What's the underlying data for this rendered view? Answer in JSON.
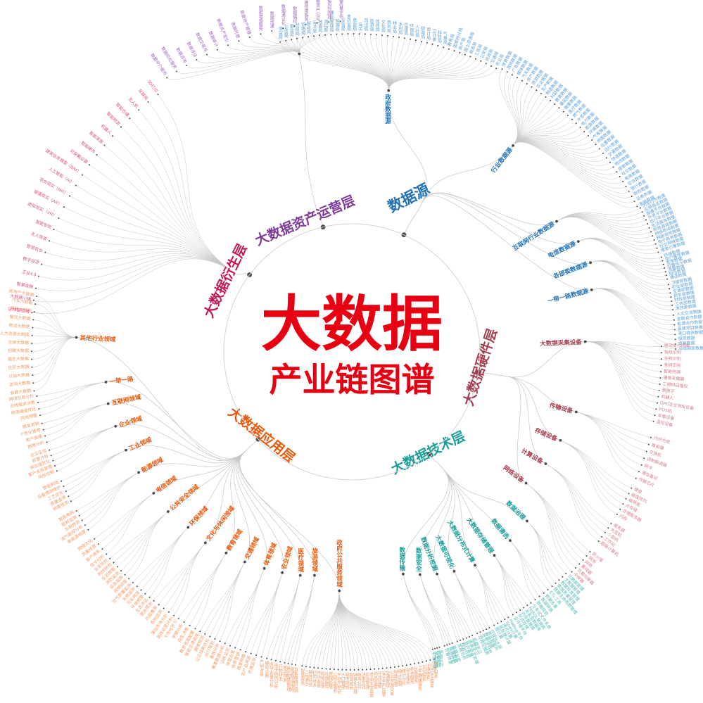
{
  "center": {
    "title": "大数据",
    "subtitle": "产业链图谱",
    "color": "#e60012"
  },
  "link_color": "#c6c6c6",
  "branches": [
    {
      "name": "数据源",
      "color": "#2473b5",
      "leaf_color": "#5c9fd6",
      "children": [
        {
          "name": "政府数据源",
          "leaves": [
            "农业局",
            "交通局",
            "民政局",
            "公安局",
            "工商局",
            "税务局",
            "国土资源局",
            "房产局",
            "国家统计局",
            "教育局",
            "气象局",
            "科技局",
            "卫计委",
            "审计局",
            "财政局",
            "人社局",
            "环保局",
            "住建局",
            "水利局",
            "林业局",
            "商务局",
            "文化局",
            "体育局",
            "旅游局",
            "司法局",
            "海关",
            "质监局",
            "食药监局",
            "安监局",
            "能源局",
            "通信管理局",
            "测绘局",
            "地震局",
            "海洋局",
            "邮政局",
            "铁路局",
            "民航局",
            "银监局",
            "证监局",
            "保监局"
          ]
        },
        {
          "name": "行业数据源",
          "leaves": [
            "金融数据",
            "证券数据",
            "保险数据",
            "银行数据",
            "征信数据",
            "电商数据",
            "社交数据",
            "搜索数据",
            "物流数据",
            "快递数据",
            "交通数据",
            "出行数据",
            "位置数据",
            "地图数据",
            "气象数据",
            "环境数据",
            "能源数据",
            "电力数据",
            "水务数据",
            "燃气数据",
            "医疗数据",
            "健康数据",
            "基因数据",
            "教育数据",
            "科研数据",
            "制造数据",
            "生产数据",
            "农业数据",
            "旅游数据",
            "房产数据",
            "汽车数据",
            "媒体数据",
            "广告数据",
            "游戏数据",
            "体育数据"
          ]
        },
        {
          "name": "互联网行业数据源",
          "leaves": [
            "搜索引擎数据",
            "社交网络数据",
            "电子商务数据",
            "网络视频数据",
            "网络新闻数据",
            "网络游戏数据",
            "生活服务数据",
            "出行平台数据",
            "外卖平台数据",
            "直播平台数据",
            "应用商店数据",
            "浏览行为数据"
          ]
        },
        {
          "name": "电信数据源",
          "leaves": [
            "通话数据",
            "短信数据",
            "流量数据",
            "位置信令数据",
            "宽带数据",
            "用户属性数据",
            "终端数据"
          ]
        },
        {
          "name": "各部委数据源",
          "leaves": [
            "发改委数据",
            "工信部数据",
            "财政部数据",
            "商务部数据",
            "交通部数据",
            "农业部数据",
            "卫健委数据"
          ]
        },
        {
          "name": "一带一路数据源",
          "leaves": [
            "沿线国家数据",
            "贸易数据",
            "投资数据",
            "港口物流数据",
            "基建项目数据",
            "能源合作数据",
            "金融合作数据",
            "人文交流数据"
          ]
        }
      ]
    },
    {
      "name": "大数据硬件层",
      "color": "#a63d4f",
      "leaf_color": "#d2808d",
      "children": [
        {
          "name": "大数据采集设备",
          "leaves": [
            "移动支付终端",
            "指纹识别",
            "生物识别",
            "条码识别",
            "智能终端",
            "摄像采集器",
            "二维码扫描仪",
            "黑匣子",
            "机器人",
            "GPS定位测绘设备",
            "POS机",
            "车载设备",
            "监控设备"
          ]
        },
        {
          "name": "传输设备",
          "leaves": [
            "光纤光缆",
            "路由器",
            "交换机",
            "调制解调器",
            "网卡",
            "通信基站",
            "传输芯片"
          ]
        },
        {
          "name": "存储设备",
          "leaves": [
            "硬盘",
            "磁盘阵列",
            "磁带库",
            "光存储",
            "存储服务器",
            "闪存"
          ]
        },
        {
          "name": "计算设备",
          "leaves": [
            "服务器",
            "大型机",
            "小型机",
            "工作站",
            "超级计算机"
          ]
        },
        {
          "name": "网络设备",
          "leaves": [
            "防火墙",
            "网关",
            "网桥",
            "集线器",
            "负载均衡器",
            "中继器"
          ]
        }
      ]
    },
    {
      "name": "大数据技术层",
      "color": "#1b9e9a",
      "leaf_color": "#55bab5",
      "children": [
        {
          "name": "数据治理",
          "leaves": [
            "元数据管理",
            "主数据管理",
            "数据标准管理",
            "数据质量管理",
            "数据生命周期管理"
          ]
        },
        {
          "name": "数据清洗",
          "leaves": [
            "ETL工具",
            "数据去重",
            "数据转换",
            "数据校验"
          ]
        },
        {
          "name": "大数据存储管理",
          "leaves": [
            "分布式文件系统",
            "NoSQL数据库",
            "关系型数据库",
            "内存数据库",
            "列式存储",
            "云存储平台"
          ]
        },
        {
          "name": "大数据分布式计算",
          "leaves": [
            "Hadoop平台",
            "Spark计算",
            "流式计算",
            "批处理计算",
            "图计算"
          ]
        },
        {
          "name": "大数据可视化",
          "leaves": [
            "可视化大屏",
            "商业智能BI",
            "数据地图",
            "交互式分析",
            "可视化报表"
          ]
        },
        {
          "name": "数据分析挖掘",
          "leaves": [
            "机器学习",
            "深度学习",
            "自然语言处理",
            "用户画像",
            "预测分析",
            "关联分析"
          ]
        },
        {
          "name": "数据安全",
          "leaves": [
            "数据加密",
            "数据脱敏",
            "访问控制",
            "灾备恢复"
          ]
        },
        {
          "name": "数据传输",
          "leaves": [
            "消息队列",
            "数据总线",
            "实时同步",
            "专线传输"
          ]
        }
      ]
    },
    {
      "name": "大数据应用层",
      "color": "#e8590c",
      "leaf_color": "#f09a66",
      "children": [
        {
          "name": "其他行业领域",
          "leaves": [
            "房地产大数据",
            "汽车大数据",
            "零售大数据",
            "餐饮大数据",
            "物流大数据",
            "人力资源大数据",
            "法律大数据",
            "招聘大数据",
            "婚恋大数据",
            "社区大数据",
            "公益大数据",
            "咨询大数据",
            "会展大数据"
          ]
        },
        {
          "name": "一带一路",
          "leaves": [
            "跨境贸易分析",
            "沿线投资决策",
            "物流通道优化",
            "风险预警"
          ]
        },
        {
          "name": "互联网领域",
          "leaves": [
            "精准营销",
            "个性化推荐",
            "用户画像",
            "舆情分析"
          ]
        },
        {
          "name": "企业领域",
          "leaves": [
            "企业征信",
            "经营分析",
            "供应链优化",
            "客户关系管理",
            "风险控制"
          ]
        },
        {
          "name": "工业领域",
          "leaves": [
            "智能制造",
            "设备预测维护",
            "工艺优化",
            "质量追溯",
            "供需预测"
          ]
        },
        {
          "name": "能源领域",
          "leaves": [
            "智能电网",
            "能耗监测",
            "负荷预测",
            "油气勘探分析",
            "新能源调度"
          ]
        },
        {
          "name": "电信领域",
          "leaves": [
            "网络优化",
            "流量经营",
            "客户维系",
            "信令分析"
          ]
        },
        {
          "name": "公共安全领域",
          "leaves": [
            "治安防控",
            "刑侦研判",
            "反恐预警",
            "消防监测",
            "应急指挥",
            "视频侦查"
          ]
        },
        {
          "name": "环保领域",
          "leaves": [
            "空气质量监测",
            "水质监测",
            "污染溯源",
            "环境预警",
            "生态评估"
          ]
        },
        {
          "name": "文化与休闲领域",
          "leaves": [
            "票房预测",
            "内容推荐",
            "版权监测",
            "演出市场分析",
            "游戏运营分析"
          ]
        },
        {
          "name": "教育领域",
          "leaves": [
            "个性化学习",
            "学情分析",
            "招生决策",
            "教育资源配置"
          ]
        },
        {
          "name": "交通领域",
          "leaves": [
            "智能交通调度",
            "拥堵预测",
            "公交线路优化",
            "出行规划",
            "事故分析"
          ]
        },
        {
          "name": "体育领域",
          "leaves": [
            "赛事数据分析",
            "训练监测",
            "场馆运营",
            "体育营销"
          ]
        },
        {
          "name": "农业领域",
          "leaves": [
            "精准种植",
            "农产品溯源",
            "农情监测",
            "产销对接"
          ]
        },
        {
          "name": "医疗领域",
          "leaves": [
            "辅助诊断",
            "医学影像分析",
            "电子病历分析",
            "药物研发"
          ]
        },
        {
          "name": "旅游领域",
          "leaves": [
            "客流预测",
            "景区智慧管理",
            "旅游精准推荐",
            "游客舆情监测"
          ]
        },
        {
          "name": "政府公共服务领域",
          "leaves": [
            "智慧政务",
            "一网通办",
            "精准扶贫",
            "信用体系",
            "市场监管",
            "税收征管",
            "社保服务",
            "医保监管",
            "公积金服务",
            "不动产登记",
            "人口管理",
            "城市规划",
            "智慧城管",
            "网格化治理",
            "政务公开",
            "决策支持",
            "应急管理",
            "食品安全监管",
            "药品监管",
            "环境监管",
            "安全生产监管",
            "交通管理",
            "公共资源交易",
            "财政监督",
            "审计监督",
            "统计分析",
            "就业服务",
            "养老服务",
            "民政服务",
            "卫生健康服务",
            "文化服务",
            "法律服务",
            "公共安全服务",
            "便民服务"
          ]
        }
      ]
    },
    {
      "name": "大数据衍生层",
      "color": "#c2185b",
      "leaf_color": "#d45586",
      "children": [
        {
          "name": "",
          "leaves": [
            "3D打印",
            "车联网",
            "无人机",
            "智能仓储",
            "智能物流",
            "机器人",
            "智能家居",
            "智能硬件",
            "可穿戴设备",
            "建筑信息模型（BIM）",
            "人工智能（AI）",
            "混合现实（MR）",
            "增强现实（AR）",
            "虚拟现实（VR）",
            "智能安防",
            "无人驾驶",
            "智慧农业",
            "数字经济",
            "工业4.0",
            "智慧金融",
            "大数据小镇",
            "区块链应用"
          ]
        }
      ]
    },
    {
      "name": "大数据资产运营层",
      "color": "#7d3c98",
      "leaf_color": "#a169bd",
      "children": [
        {
          "name": "",
          "leaves": [
            "数据质量评估",
            "数据风险防控",
            "数据资产公证",
            "数据信用服务",
            "数据确权",
            "数据通证化",
            "数据流通",
            "数据增值服务",
            "数据资产管理",
            "数据托管",
            "数据资产定价",
            "数据审计",
            "数据交易所",
            "数据评估",
            "数据咨询",
            "数据经纪服务",
            "数据中介服务"
          ]
        }
      ]
    }
  ]
}
